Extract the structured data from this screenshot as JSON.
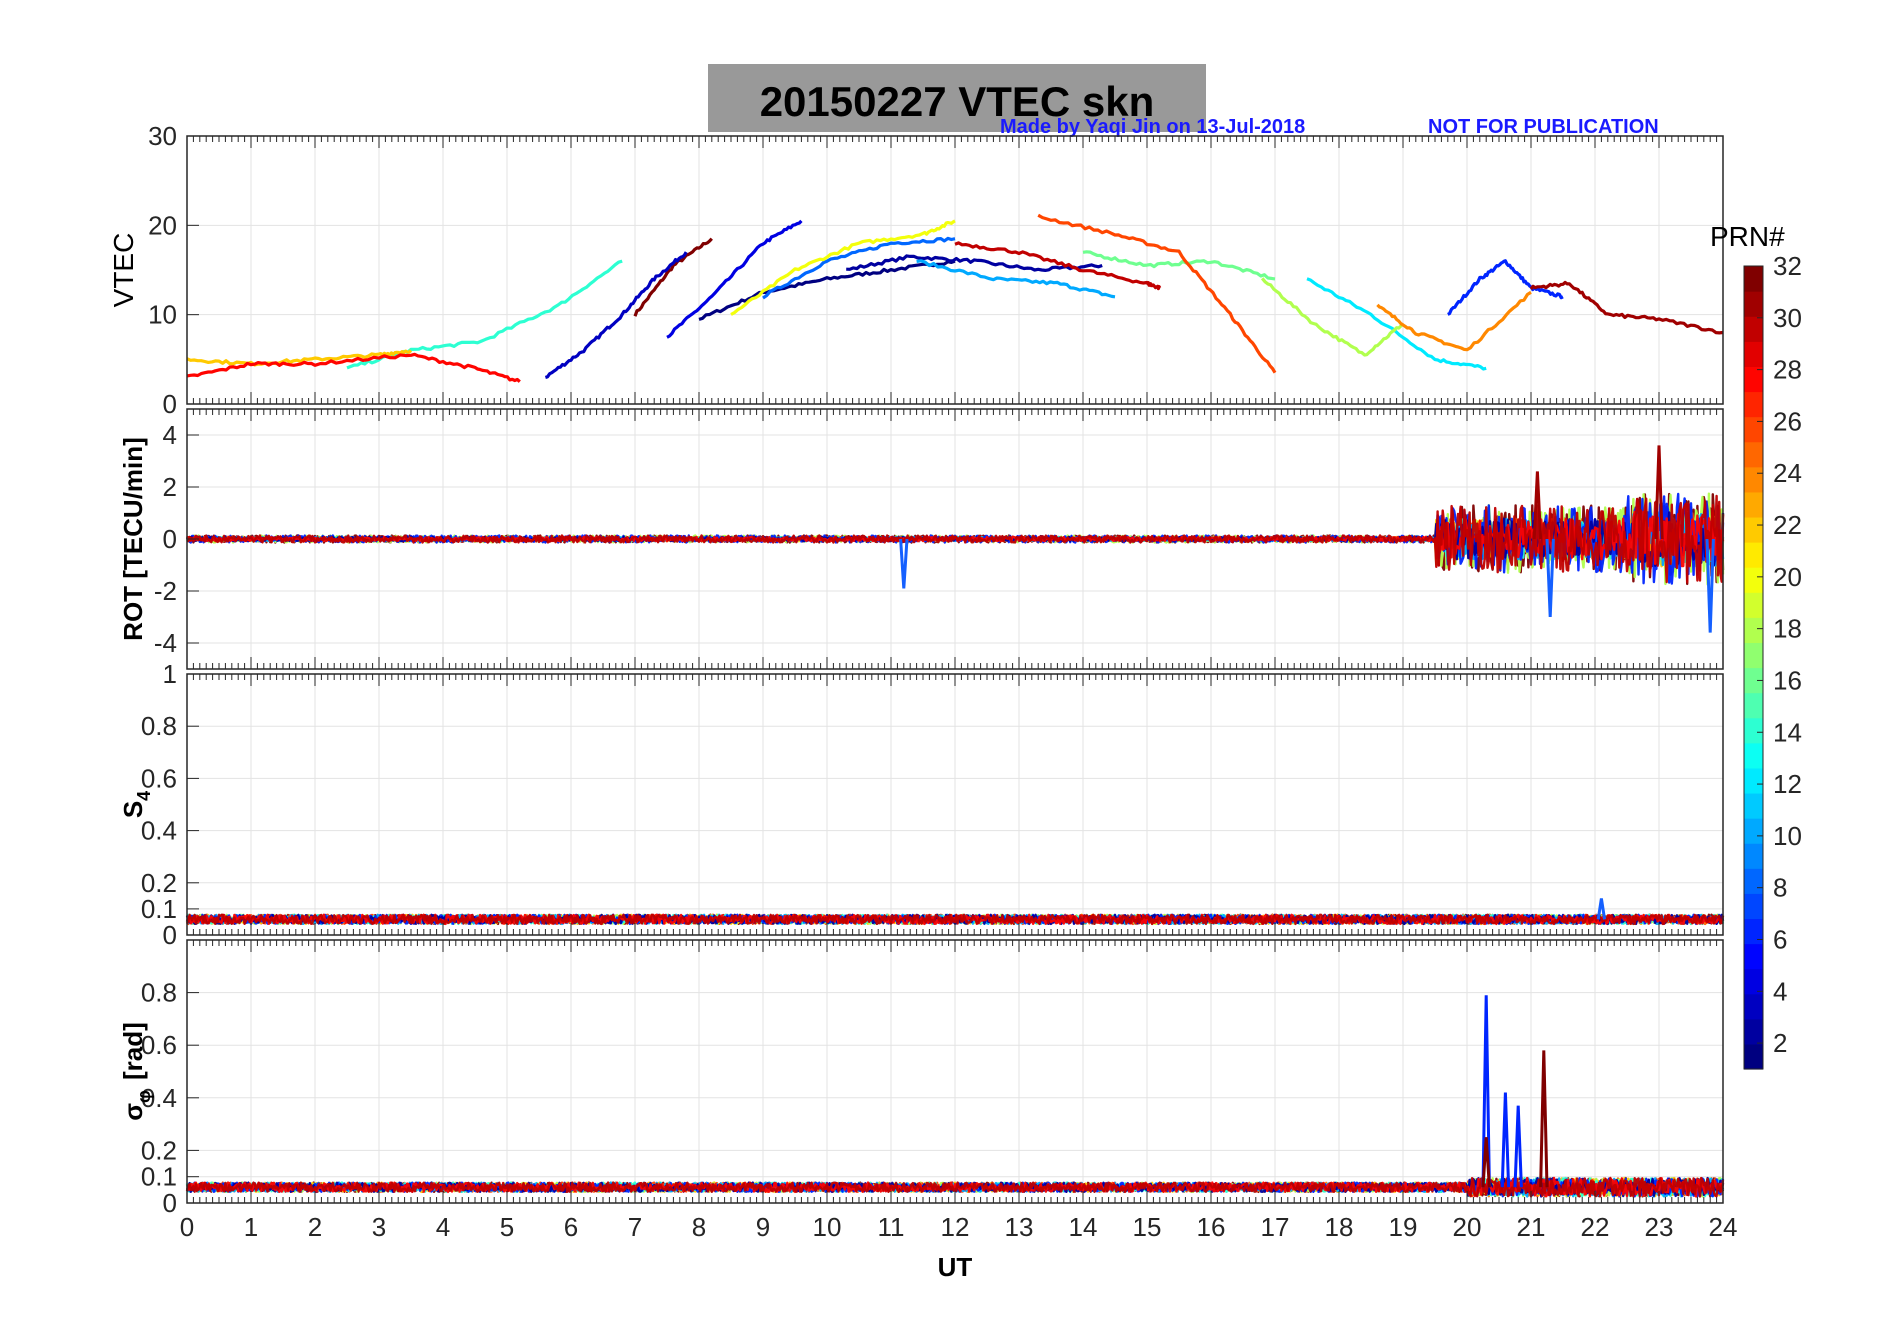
{
  "title": "20150227    VTEC  skn",
  "credit": "Made by Yaqi Jin on 13-Jul-2018",
  "notice": "NOT FOR PUBLICATION",
  "chart_data": {
    "type": "line",
    "x_label": "UT",
    "x_range": [
      0,
      24
    ],
    "x_ticks": [
      0,
      1,
      2,
      3,
      4,
      5,
      6,
      7,
      8,
      9,
      10,
      11,
      12,
      13,
      14,
      15,
      16,
      17,
      18,
      19,
      20,
      21,
      22,
      23,
      24
    ],
    "colorbar": {
      "label": "PRN#",
      "range": [
        1,
        32
      ],
      "ticks": [
        2,
        4,
        6,
        8,
        10,
        12,
        14,
        16,
        18,
        20,
        22,
        24,
        26,
        28,
        30,
        32
      ],
      "colormap": "jet"
    },
    "panels": [
      {
        "id": "vtec",
        "ylabel": "VTEC",
        "ylim": [
          0,
          30
        ],
        "yticks": [
          0,
          10,
          20,
          30
        ],
        "series": [
          {
            "prn": 32,
            "x": [
              7.0,
              7.6,
              8.2
            ],
            "y": [
              10,
              15.5,
              18.5
            ]
          },
          {
            "prn": 1,
            "x": [
              8.0,
              9.0,
              10.0,
              11.0,
              12.0
            ],
            "y": [
              9.5,
              12.5,
              14,
              15,
              16
            ]
          },
          {
            "prn": 2,
            "x": [
              10.3,
              11.3,
              12.3,
              13.3,
              14.3
            ],
            "y": [
              15,
              16.5,
              16,
              15,
              15.5
            ]
          },
          {
            "prn": 3,
            "x": [
              5.6,
              6.2,
              6.8,
              7.3,
              7.8
            ],
            "y": [
              3,
              6,
              10,
              14,
              17
            ]
          },
          {
            "prn": 4,
            "x": [
              7.5,
              8.2,
              9.0,
              9.6
            ],
            "y": [
              7.5,
              12,
              18,
              20.5
            ]
          },
          {
            "prn": 6,
            "x": [
              19.7,
              20.2,
              20.6,
              21.0,
              21.5
            ],
            "y": [
              10,
              14,
              16,
              13,
              12
            ]
          },
          {
            "prn": 8,
            "x": [
              9.0,
              10.0,
              11.0,
              12.0
            ],
            "y": [
              12,
              16,
              18,
              18.5
            ]
          },
          {
            "prn": 10,
            "x": [
              11.4,
              12.6,
              13.6,
              14.5
            ],
            "y": [
              16,
              14,
              13.5,
              12
            ]
          },
          {
            "prn": 12,
            "x": [
              17.5,
              18.5,
              19.5,
              20.3
            ],
            "y": [
              14,
              10,
              5,
              4
            ]
          },
          {
            "prn": 14,
            "x": [
              2.5,
              3.5,
              4.6,
              5.8,
              6.8
            ],
            "y": [
              4,
              6,
              7,
              11,
              16
            ]
          },
          {
            "prn": 16,
            "x": [
              14.0,
              15.0,
              16.0,
              17.0
            ],
            "y": [
              17,
              15.5,
              16,
              14
            ]
          },
          {
            "prn": 18,
            "x": [
              16.8,
              17.6,
              18.4,
              19.0
            ],
            "y": [
              14,
              9,
              5.5,
              9
            ]
          },
          {
            "prn": 20,
            "x": [
              8.5,
              9.5,
              10.5,
              11.5,
              12.0
            ],
            "y": [
              10,
              15,
              18,
              19,
              20.5
            ]
          },
          {
            "prn": 22,
            "x": [
              0.0,
              1.0,
              2.0,
              3.0,
              3.5
            ],
            "y": [
              5,
              4.5,
              5,
              5.5,
              6
            ]
          },
          {
            "prn": 24,
            "x": [
              18.6,
              19.2,
              20.0,
              21.0
            ],
            "y": [
              11,
              8,
              6,
              12.5
            ]
          },
          {
            "prn": 26,
            "x": [
              13.3,
              14.5,
              15.5,
              16.3,
              17.0
            ],
            "y": [
              21,
              19,
              17,
              10,
              3.5
            ]
          },
          {
            "prn": 28,
            "x": [
              0.0,
              1.0,
              2.0,
              3.5,
              4.5,
              5.2
            ],
            "y": [
              3,
              4.5,
              4.5,
              5.5,
              4,
              2.5
            ]
          },
          {
            "prn": 30,
            "x": [
              12.0,
              13.0,
              14.0,
              15.0,
              15.2
            ],
            "y": [
              18,
              17,
              15,
              13.5,
              13
            ]
          },
          {
            "prn": 31,
            "x": [
              21.0,
              21.6,
              22.2,
              23.0,
              24.0
            ],
            "y": [
              13,
              13.5,
              10,
              9.5,
              8
            ]
          }
        ]
      },
      {
        "id": "rot",
        "ylabel": "ROT [TECU/min]",
        "ylim": [
          -5,
          5
        ],
        "yticks": [
          -4,
          -2,
          0,
          2,
          4
        ],
        "baseline": 0,
        "noise_amplitude": [
          {
            "x_start": 0,
            "x_end": 19.5,
            "amp": 0.3
          },
          {
            "x_start": 19.5,
            "x_end": 22.5,
            "amp": 2.6
          },
          {
            "x_start": 22.5,
            "x_end": 24,
            "amp": 3.5
          }
        ],
        "spikes": [
          {
            "x": 11.2,
            "y": -1.9
          },
          {
            "x": 21.1,
            "y": 2.6
          },
          {
            "x": 21.3,
            "y": -3.0
          },
          {
            "x": 23.0,
            "y": 3.6
          },
          {
            "x": 23.8,
            "y": -3.6
          }
        ]
      },
      {
        "id": "s4",
        "ylabel": "S",
        "ylabel_subscript": "4",
        "ylim": [
          0,
          1
        ],
        "yticks": [
          0,
          0.1,
          0.2,
          0.4,
          0.6,
          0.8,
          1
        ],
        "baseline": 0.06,
        "spikes": [
          {
            "x": 22.1,
            "y": 0.14
          }
        ]
      },
      {
        "id": "sigma_phi",
        "ylabel": "σ",
        "ylabel_subscript": "φ",
        "ylabel_unit": "[rad]",
        "ylim": [
          0,
          1
        ],
        "yticks": [
          0,
          0.1,
          0.2,
          0.4,
          0.6,
          0.8
        ],
        "baseline": 0.06,
        "spikes": [
          {
            "prn": 6,
            "x": 20.3,
            "y": 0.79
          },
          {
            "prn": 6,
            "x": 20.6,
            "y": 0.42
          },
          {
            "prn": 6,
            "x": 20.8,
            "y": 0.37
          },
          {
            "prn": 32,
            "x": 21.2,
            "y": 0.58
          },
          {
            "prn": 32,
            "x": 20.3,
            "y": 0.25
          }
        ]
      }
    ]
  }
}
